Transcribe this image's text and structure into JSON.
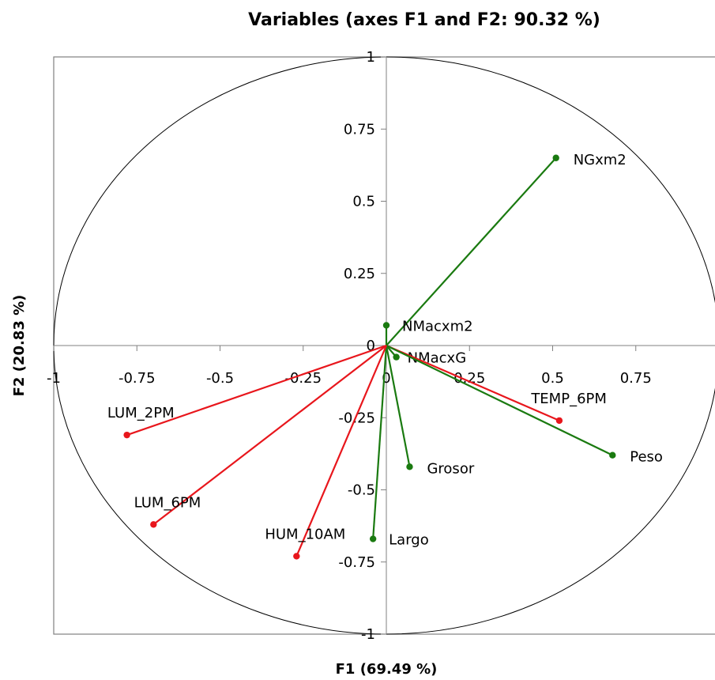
{
  "chart_data": {
    "type": "scatter",
    "subtype": "correlation-circle",
    "title": "Variables (axes F1 and F2: 90.32 %)",
    "xlabel": "F1 (69.49 %)",
    "ylabel": "F2 (20.83 %)",
    "xlim": [
      -1,
      1
    ],
    "ylim": [
      -1,
      1
    ],
    "x_ticks": [
      "-1",
      "-0.75",
      "-0.5",
      "-0.25",
      "0",
      "0.25",
      "0.5",
      "0.75"
    ],
    "y_ticks": [
      "1",
      "0.75",
      "0.5",
      "0.25",
      "0",
      "-0.25",
      "-0.5",
      "-0.75",
      "-1"
    ],
    "x_tick_values": [
      -1,
      -0.75,
      -0.5,
      -0.25,
      0,
      0.25,
      0.5,
      0.75
    ],
    "y_tick_values": [
      1,
      0.75,
      0.5,
      0.25,
      0,
      -0.25,
      -0.5,
      -0.75,
      -1
    ],
    "unit_circle": true,
    "grid": false,
    "colors": {
      "green": "#1a7a10",
      "red": "#e8161c"
    },
    "points": [
      {
        "name": "NGxm2",
        "x": 0.51,
        "y": 0.65,
        "color": "green"
      },
      {
        "name": "NMacxm2",
        "x": 0.0,
        "y": 0.07,
        "color": "green"
      },
      {
        "name": "NMacxG",
        "x": 0.03,
        "y": -0.04,
        "color": "green"
      },
      {
        "name": "TEMP_6PM",
        "x": 0.52,
        "y": -0.26,
        "color": "red"
      },
      {
        "name": "Peso",
        "x": 0.68,
        "y": -0.38,
        "color": "green"
      },
      {
        "name": "Grosor",
        "x": 0.07,
        "y": -0.42,
        "color": "green"
      },
      {
        "name": "Largo",
        "x": -0.04,
        "y": -0.67,
        "color": "green"
      },
      {
        "name": "HUM_10AM",
        "x": -0.27,
        "y": -0.73,
        "color": "red"
      },
      {
        "name": "LUM_2PM",
        "x": -0.78,
        "y": -0.31,
        "color": "red"
      },
      {
        "name": "LUM_6PM",
        "x": -0.7,
        "y": -0.62,
        "color": "red"
      }
    ]
  }
}
